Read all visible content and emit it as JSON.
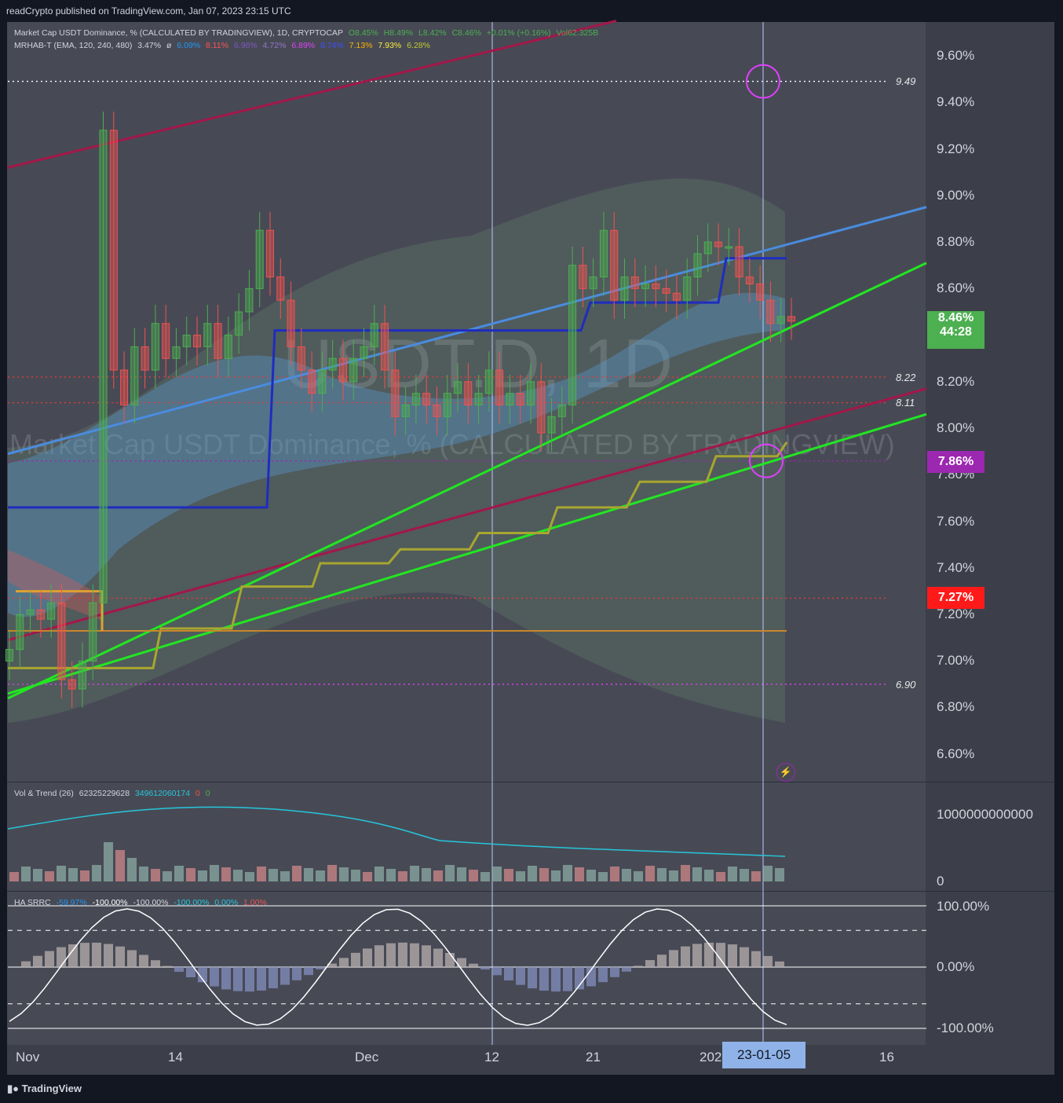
{
  "header": {
    "published": "readCrypto published on TradingView.com, Jan 07, 2023 23:15 UTC"
  },
  "legend_main": {
    "title": "Market Cap USDT Dominance, % (CALCULATED BY TRADINGVIEW), 1D, CRYPTOCAP",
    "o": "O8.45%",
    "h": "H8.49%",
    "l": "L8.42%",
    "c": "C8.46%",
    "chg": "+0.01% (+0.16%)",
    "vol": "Vol62.325B",
    "ind_name": "MRHAB-T (EMA, 120, 240, 480)",
    "ind_vals": [
      "3.47%",
      "ø",
      "6.09%",
      "8.11%",
      "6.96%",
      "4.72%",
      "6.89%",
      "8.74%",
      "7.13%",
      "7.93%",
      "6.28%"
    ]
  },
  "legend_vol": {
    "name": "Vol & Trend (26)",
    "v1": "62325229628",
    "v2": "349612060174",
    "v3": "0",
    "v4": "0"
  },
  "legend_osc": {
    "name": "HA SRRC",
    "vals": [
      "-59.97%",
      "-100.00%",
      "-100.00%",
      "-100.00%",
      "0.00%",
      "1.00%"
    ]
  },
  "watermark": {
    "symbol": "USDT.D, 1D",
    "description": "Market Cap USDT Dominance, % (CALCULATED BY TRADINGVIEW)"
  },
  "price_tags": {
    "last": "8.46%",
    "countdown": "44:28",
    "purple": "7.86%",
    "red": "7.27%"
  },
  "level_labels": {
    "l949": "9.49",
    "l822": "8.22",
    "l811": "8.11",
    "l690": "6.90"
  },
  "y_axis": {
    "main": [
      "9.60%",
      "9.40%",
      "9.20%",
      "9.00%",
      "8.80%",
      "8.60%",
      "8.20%",
      "8.00%",
      "7.80%",
      "7.60%",
      "7.40%",
      "7.20%",
      "7.00%",
      "6.80%",
      "6.60%"
    ],
    "vol": [
      "1000000000000",
      "0"
    ],
    "osc": [
      "100.00%",
      "0.00%",
      "-100.00%"
    ]
  },
  "x_axis": {
    "ticks": [
      "Nov",
      "14",
      "Dec",
      "12",
      "21",
      "202",
      "16"
    ],
    "selected": "23-01-05"
  },
  "branding": "TradingView",
  "colors": {
    "bull": "#4caf50",
    "bear": "#ef5350",
    "accent_purple": "#9c27b0",
    "blue_line": "#1e2dbf",
    "lime": "#22e622"
  },
  "chart_data": [
    {
      "type": "candlestick",
      "title": "Market Cap USDT Dominance, % (CALCULATED BY TRADINGVIEW), 1D, CRYPTOCAP",
      "ylim": [
        6.5,
        9.75
      ],
      "x_range": [
        "2022-11-01",
        "2023-01-20"
      ],
      "close_series": [
        7.05,
        7.2,
        7.22,
        7.18,
        7.25,
        6.92,
        6.88,
        7.0,
        7.25,
        9.28,
        8.25,
        8.1,
        8.35,
        8.25,
        8.45,
        8.3,
        8.35,
        8.4,
        8.35,
        8.45,
        8.3,
        8.4,
        8.5,
        8.6,
        8.85,
        8.65,
        8.55,
        8.35,
        8.25,
        8.15,
        8.25,
        8.3,
        8.2,
        8.3,
        8.35,
        8.45,
        8.25,
        8.05,
        8.1,
        8.15,
        8.1,
        8.05,
        8.15,
        8.2,
        8.1,
        8.15,
        8.25,
        8.1,
        8.15,
        8.1,
        8.2,
        7.98,
        8.05,
        8.1,
        8.7,
        8.6,
        8.65,
        8.85,
        8.55,
        8.65,
        8.6,
        8.62,
        8.6,
        8.58,
        8.55,
        8.65,
        8.75,
        8.8,
        8.78,
        8.78,
        8.65,
        8.62,
        8.55,
        8.45,
        8.48,
        8.46
      ],
      "horizontal_levels": [
        9.49,
        8.22,
        8.11,
        7.86,
        7.27,
        6.9
      ],
      "last_price": 8.46
    },
    {
      "type": "bar",
      "title": "Vol & Trend (26)",
      "ylim": [
        0,
        1000000000000
      ],
      "last_value": 62325229628
    },
    {
      "type": "line",
      "title": "HA SRRC",
      "ylim": [
        -100,
        100
      ],
      "guides": [
        100,
        60,
        0,
        -60,
        -100
      ]
    }
  ]
}
